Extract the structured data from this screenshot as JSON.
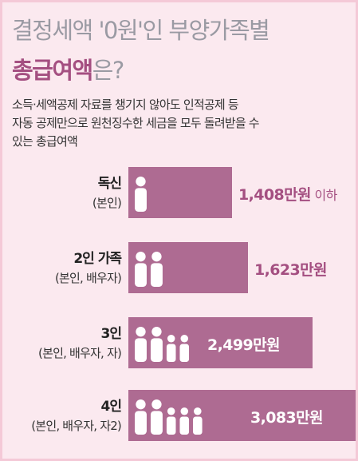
{
  "title": {
    "line1": "결정세액 '0원'인 부양가족별",
    "line2_highlight": "총급여액",
    "line2_rest": "은?"
  },
  "description": [
    "소득·세액공제 자료를 챙기지 않아도 인적공제 등",
    "자동 공제만으로 원천징수한 세금을 모두 돌려받을 수",
    "있는 총급여액"
  ],
  "chart_data": {
    "type": "bar",
    "orientation": "horizontal",
    "unit": "만원",
    "categories": [
      {
        "name": "독신",
        "sub": "(본인)"
      },
      {
        "name": "2인 가족",
        "sub": "(본인, 배우자)"
      },
      {
        "name": "3인",
        "sub": "(본인, 배우자, 자)"
      },
      {
        "name": "4인",
        "sub": "(본인, 배우자, 자2)"
      }
    ],
    "values": [
      1408,
      1623,
      2499,
      3083
    ],
    "value_labels": [
      "1,408만원",
      "1,623만원",
      "2,499만원",
      "3,083만원"
    ],
    "value_suffix": [
      "이하",
      "",
      "",
      ""
    ],
    "people_counts": [
      1,
      2,
      4,
      5
    ],
    "bar_color": "#ae6b92"
  }
}
